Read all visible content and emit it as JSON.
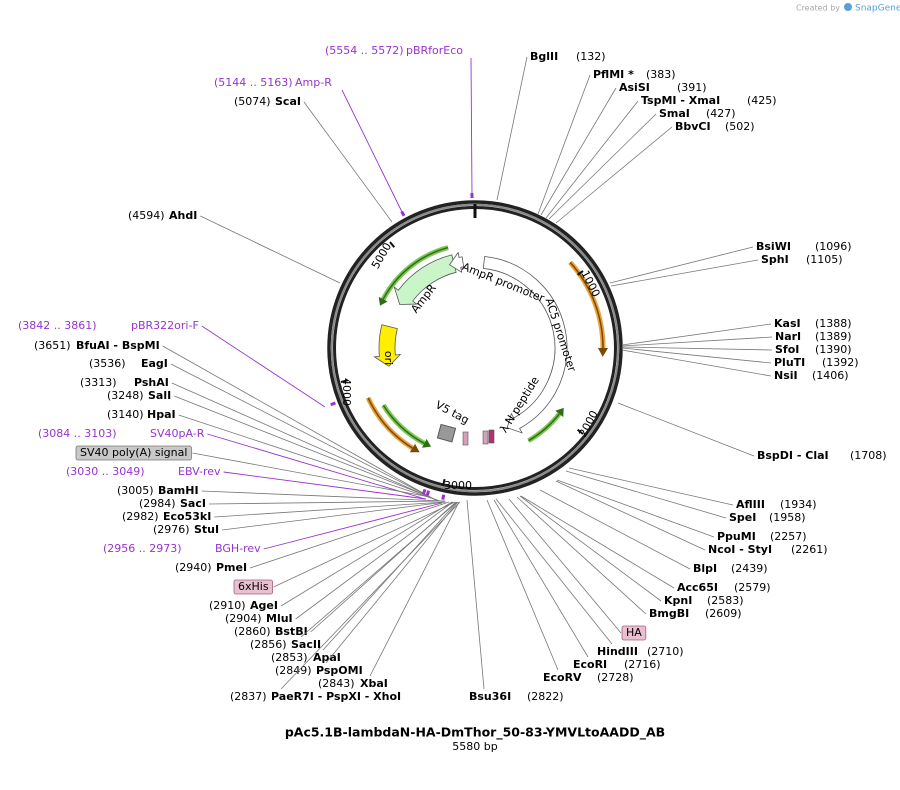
{
  "header": {
    "credit": "Created by",
    "brand": "SnapGene"
  },
  "map": {
    "name": "pAc5.1B-lambdaN-HA-DmThor_50-83-YMVLtoAADD_AB",
    "length": "5580 bp",
    "ruler": [
      "1000",
      "2000",
      "3000",
      "4000",
      "5000"
    ],
    "features": [
      "AmpR",
      "AmpR promoter",
      "AC5 promoter",
      "ori",
      "λ N peptide",
      "V5 tag"
    ],
    "sites": [
      {
        "name": "BglII",
        "position": "(132)"
      },
      {
        "name": "PflMI *",
        "position": "(383)"
      },
      {
        "name": "AsiSI",
        "position": "(391)"
      },
      {
        "name": "TspMI - XmaI",
        "position": "(425)"
      },
      {
        "name": "SmaI",
        "position": "(427)"
      },
      {
        "name": "BbvCI",
        "position": "(502)"
      },
      {
        "name": "BsiWI",
        "position": "(1096)"
      },
      {
        "name": "SphI",
        "position": "(1105)"
      },
      {
        "name": "KasI",
        "position": "(1388)"
      },
      {
        "name": "NarI",
        "position": "(1389)"
      },
      {
        "name": "SfoI",
        "position": "(1390)"
      },
      {
        "name": "PluTI",
        "position": "(1392)"
      },
      {
        "name": "NsiI",
        "position": "(1406)"
      },
      {
        "name": "BspDI - ClaI",
        "position": "(1708)"
      },
      {
        "name": "AflIII",
        "position": "(1934)"
      },
      {
        "name": "SpeI",
        "position": "(1958)"
      },
      {
        "name": "PpuMI",
        "position": "(2257)"
      },
      {
        "name": "NcoI - StyI",
        "position": "(2261)"
      },
      {
        "name": "BlpI",
        "position": "(2439)"
      },
      {
        "name": "Acc65I",
        "position": "(2579)"
      },
      {
        "name": "KpnI",
        "position": "(2583)"
      },
      {
        "name": "BmgBI",
        "position": "(2609)"
      },
      {
        "name": "HindIII",
        "position": "(2710)"
      },
      {
        "name": "EcoRI",
        "position": "(2716)"
      },
      {
        "name": "EcoRV",
        "position": "(2728)"
      },
      {
        "name": "Bsu36I",
        "position": "(2822)"
      },
      {
        "name": "ScaI",
        "position": "(5074)"
      },
      {
        "name": "AhdI",
        "position": "(4594)"
      },
      {
        "name": "BfuAI - BspMI",
        "position": "(3651)"
      },
      {
        "name": "EagI",
        "position": "(3536)"
      },
      {
        "name": "PshAI",
        "position": "(3313)"
      },
      {
        "name": "SalI",
        "position": "(3248)"
      },
      {
        "name": "HpaI",
        "position": "(3140)"
      },
      {
        "name": "BamHI",
        "position": "(3005)"
      },
      {
        "name": "SacI",
        "position": "(2984)"
      },
      {
        "name": "Eco53kI",
        "position": "(2982)"
      },
      {
        "name": "StuI",
        "position": "(2976)"
      },
      {
        "name": "PmeI",
        "position": "(2940)"
      },
      {
        "name": "AgeI",
        "position": "(2910)"
      },
      {
        "name": "MluI",
        "position": "(2904)"
      },
      {
        "name": "BstBI",
        "position": "(2860)"
      },
      {
        "name": "SacII",
        "position": "(2856)"
      },
      {
        "name": "ApaI",
        "position": "(2853)"
      },
      {
        "name": "PspOMI",
        "position": "(2849)"
      },
      {
        "name": "XbaI",
        "position": "(2843)"
      },
      {
        "name": "PaeR7I - PspXI - XhoI",
        "position": "(2837)"
      }
    ],
    "primers": [
      {
        "position": "(5554 .. 5572)",
        "name": "pBRforEco"
      },
      {
        "position": "(5144 .. 5163)",
        "name": "Amp-R"
      },
      {
        "position": "(3842 .. 3861)",
        "name": "pBR322ori-F"
      },
      {
        "position": "(3084 .. 3103)",
        "name": "SV40pA-R"
      },
      {
        "position": "(3030 .. 3049)",
        "name": "EBV-rev"
      },
      {
        "position": "(2956 .. 2973)",
        "name": "BGH-rev"
      }
    ],
    "boxed_features": [
      "SV40 poly(A) signal",
      "6xHis",
      "HA"
    ]
  }
}
